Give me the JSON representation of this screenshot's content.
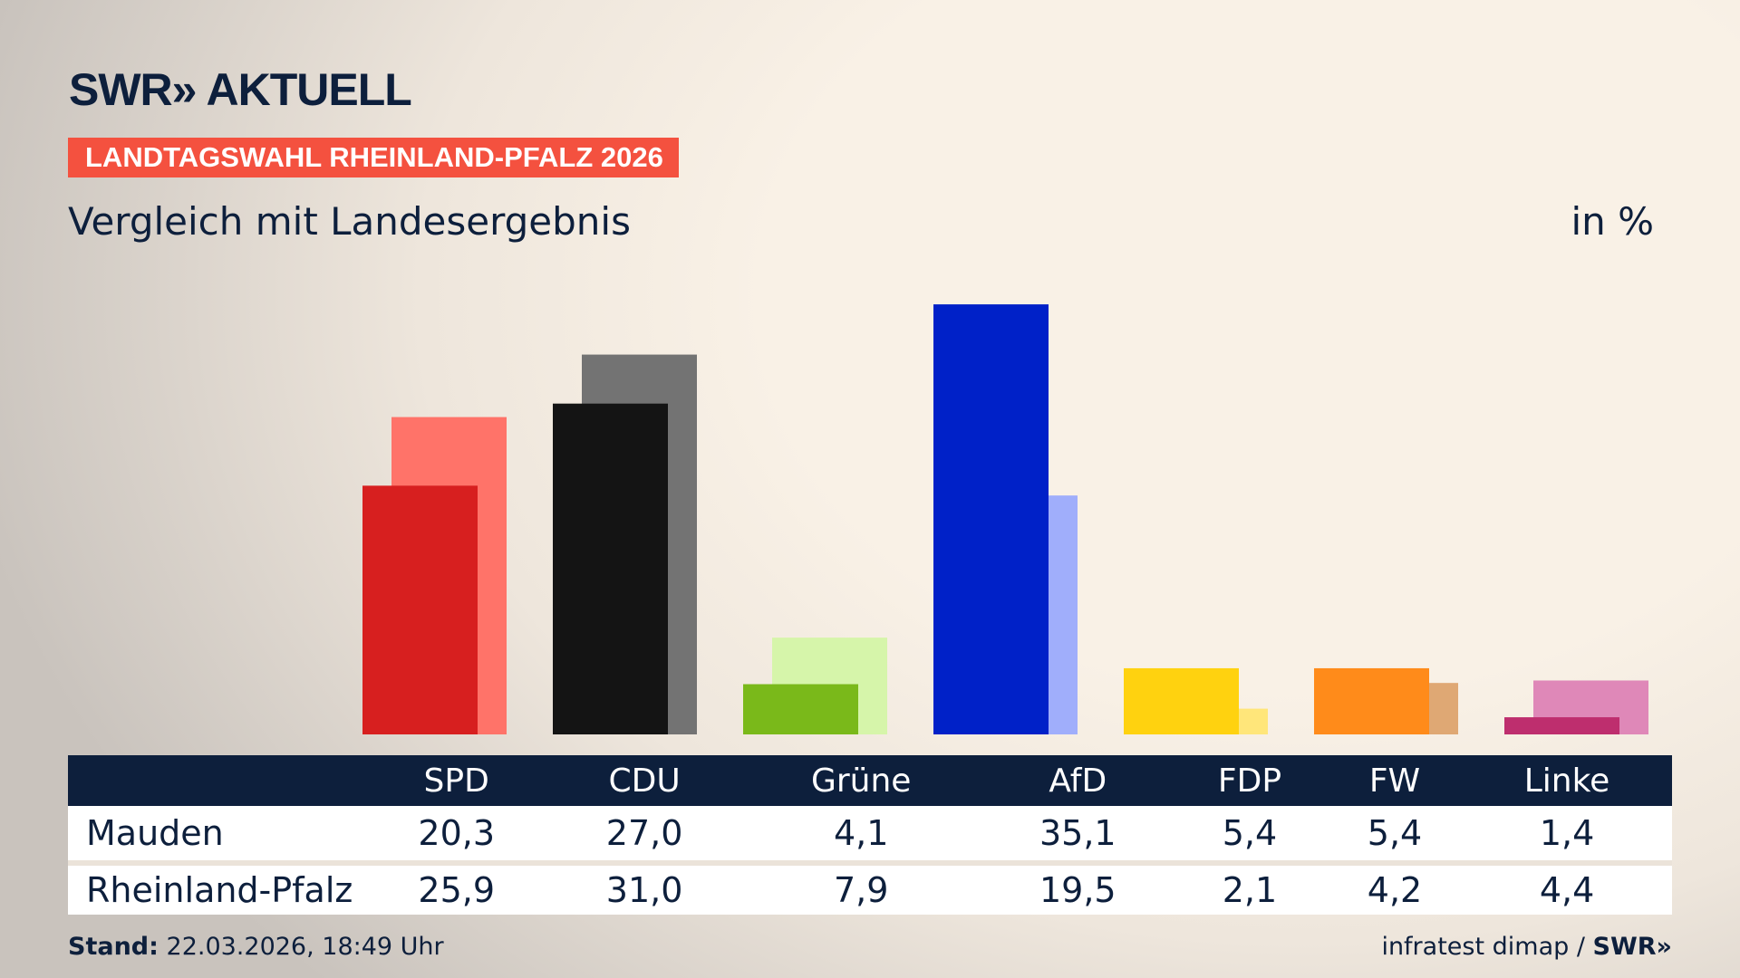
{
  "header": {
    "logo": "SWR» AKTUELL",
    "badge": "LANDTAGSWAHL RHEINLAND-PFALZ 2026",
    "subtitle": "Vergleich mit Landesergebnis",
    "unit": "in %"
  },
  "chart_data": {
    "type": "bar",
    "title": "Vergleich mit Landesergebnis",
    "ylabel": "in %",
    "ylim": [
      0,
      36
    ],
    "categories": [
      "SPD",
      "CDU",
      "Grüne",
      "AfD",
      "FDP",
      "FW",
      "Linke"
    ],
    "series": [
      {
        "name": "Mauden",
        "values": [
          20.3,
          27.0,
          4.1,
          35.1,
          5.4,
          5.4,
          1.4
        ],
        "colors": [
          "#d71f1f",
          "#141414",
          "#7ab91a",
          "#0021c8",
          "#ffd20f",
          "#ff8b1a",
          "#be2e6e"
        ]
      },
      {
        "name": "Rheinland-Pfalz",
        "values": [
          25.9,
          31.0,
          7.9,
          19.5,
          2.1,
          4.2,
          4.4
        ],
        "colors": [
          "#ff7369",
          "#737373",
          "#d6f5aa",
          "#a0aefb",
          "#ffe67a",
          "#dfa874",
          "#df88b8"
        ]
      }
    ]
  },
  "table": {
    "rows": [
      {
        "label": "Mauden",
        "values": [
          "20,3",
          "27,0",
          "4,1",
          "35,1",
          "5,4",
          "5,4",
          "1,4"
        ]
      },
      {
        "label": "Rheinland-Pfalz",
        "values": [
          "25,9",
          "31,0",
          "7,9",
          "19,5",
          "2,1",
          "4,2",
          "4,4"
        ]
      }
    ]
  },
  "footer": {
    "stand_label": "Stand:",
    "stand_value": "22.03.2026, 18:49 Uhr",
    "source": "infratest dimap / ",
    "source_logo": "SWR»"
  }
}
